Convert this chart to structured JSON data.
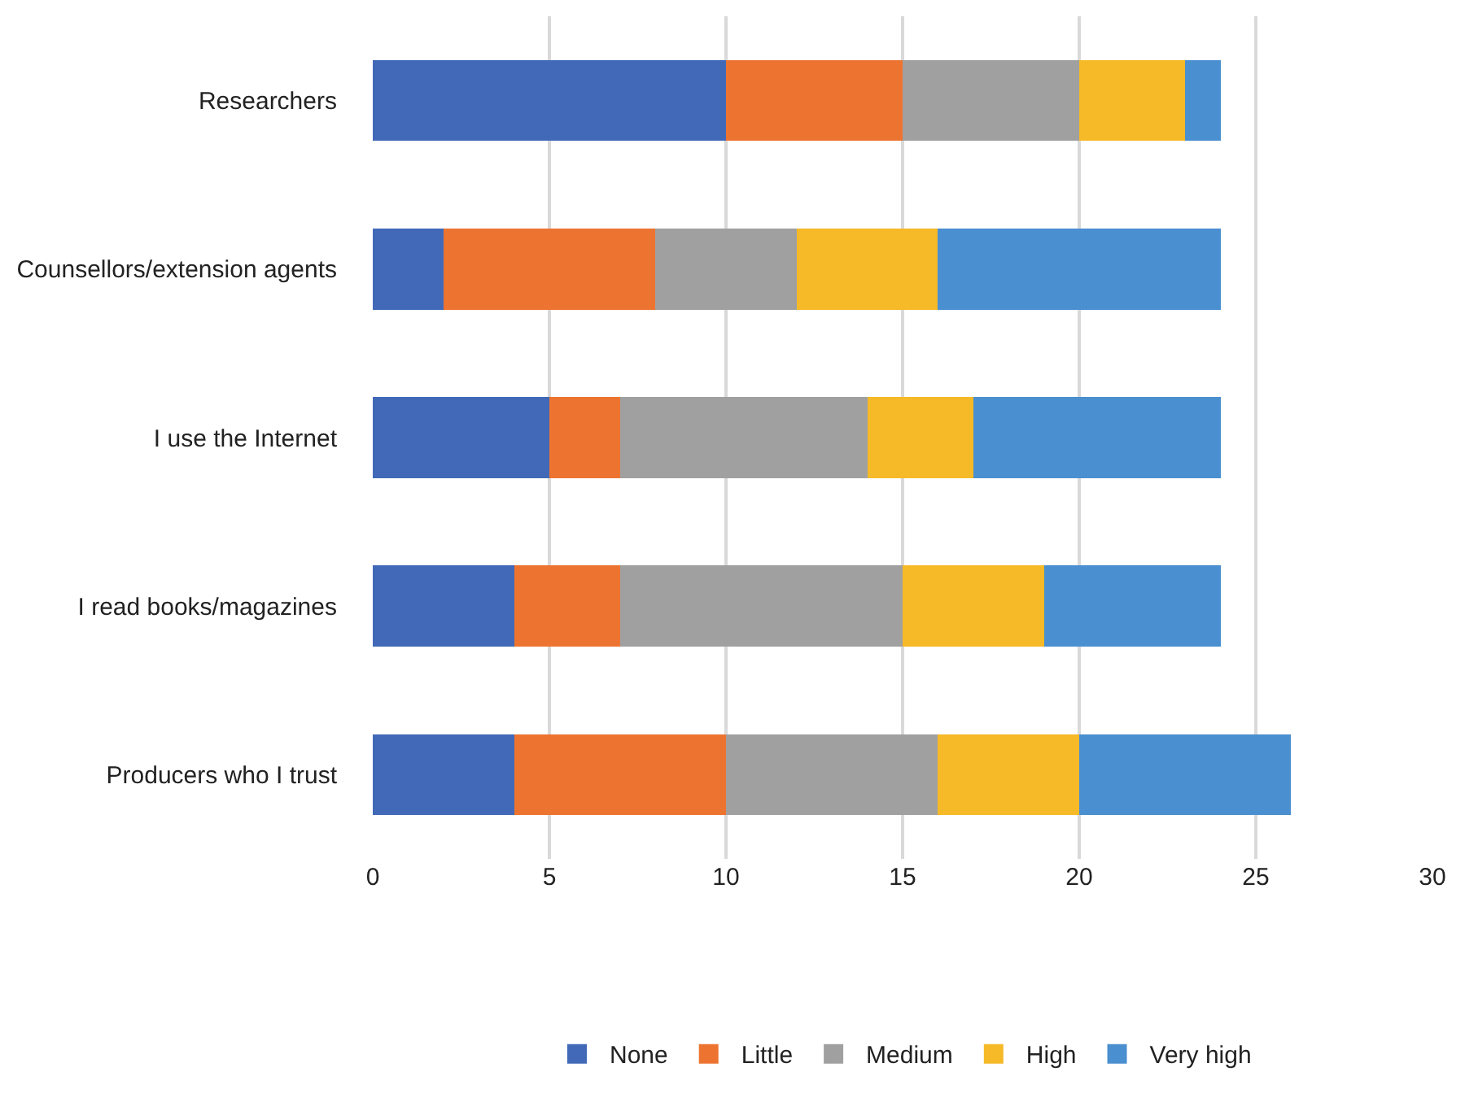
{
  "chart_data": {
    "type": "bar",
    "orientation": "horizontal",
    "stacked": true,
    "categories": [
      "Researchers",
      "Counsellors/extension agents",
      "I use the Internet",
      "I read books/magazines",
      "Producers who I trust"
    ],
    "series": [
      {
        "name": "None",
        "color": "#4169b8",
        "values": [
          10,
          2,
          5,
          4,
          4
        ]
      },
      {
        "name": "Little",
        "color": "#ed7430",
        "values": [
          5,
          6,
          2,
          3,
          6
        ]
      },
      {
        "name": "Medium",
        "color": "#a0a0a0",
        "values": [
          5,
          4,
          7,
          8,
          6
        ]
      },
      {
        "name": "High",
        "color": "#f6b928",
        "values": [
          3,
          4,
          3,
          4,
          4
        ]
      },
      {
        "name": "Very high",
        "color": "#4a8fd0",
        "values": [
          1,
          8,
          7,
          5,
          6
        ]
      }
    ],
    "xlim": [
      0,
      30
    ],
    "xticks": [
      0,
      5,
      10,
      15,
      20,
      25,
      30
    ],
    "grid": "x",
    "legend": "bottom"
  }
}
